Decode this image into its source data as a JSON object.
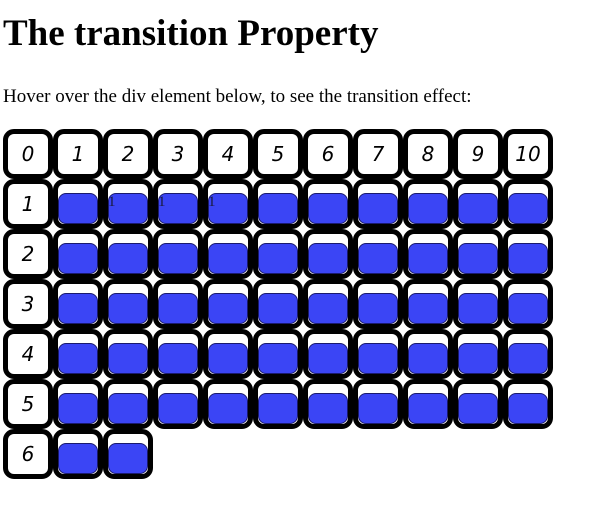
{
  "page": {
    "title": "The transition Property",
    "instruction": "Hover over the div element below, to see the transition effect:"
  },
  "colors": {
    "fill": "#3b45f5",
    "border": "#000000",
    "background": "#ffffff"
  },
  "grid": {
    "header_labels": [
      "0",
      "1",
      "2",
      "3",
      "4",
      "5",
      "6",
      "7",
      "8",
      "9",
      "10"
    ],
    "rows": [
      {
        "label": "1",
        "cells": [
          "",
          "1",
          "1",
          "1",
          "",
          "",
          "",
          "",
          "",
          ""
        ]
      },
      {
        "label": "2",
        "cells": [
          "",
          "",
          "",
          "",
          "",
          "",
          "",
          "",
          "",
          ""
        ]
      },
      {
        "label": "3",
        "cells": [
          "",
          "",
          "",
          "",
          "",
          "",
          "",
          "",
          "",
          ""
        ]
      },
      {
        "label": "4",
        "cells": [
          "",
          "",
          "",
          "",
          "",
          "",
          "",
          "",
          "",
          ""
        ]
      },
      {
        "label": "5",
        "cells": [
          "",
          "",
          "",
          "",
          "",
          "",
          "",
          "",
          "",
          ""
        ]
      },
      {
        "label": "6",
        "cells": [
          "",
          ""
        ]
      }
    ]
  }
}
